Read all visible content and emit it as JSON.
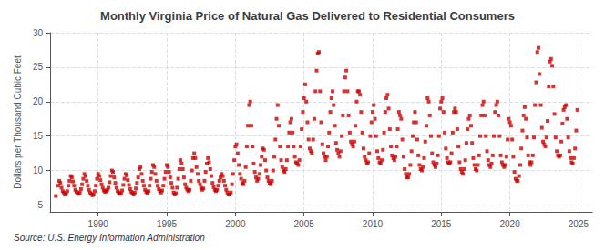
{
  "chart_data": {
    "type": "scatter",
    "title": "Monthly Virginia Price of Natural Gas Delivered to Residential Consumers",
    "ylabel": "Dollars per Thousand Cubic Feet",
    "annotations": [
      "Source: U.S. Energy Information Administration"
    ],
    "color": "#cc0000",
    "marker": "square",
    "grid": true,
    "xlim": [
      1986.5,
      2026.0
    ],
    "ylim": [
      4,
      30
    ],
    "xticks": [
      1990,
      1995,
      2000,
      2005,
      2010,
      2015,
      2020,
      2025
    ],
    "yticks": [
      5,
      10,
      15,
      20,
      25,
      30
    ],
    "x": [
      1986.917,
      1987.083,
      1987.167,
      1987.25,
      1987.333,
      1987.417,
      1987.5,
      1987.583,
      1987.667,
      1987.75,
      1987.833,
      1987.917,
      1988.0,
      1988.083,
      1988.167,
      1988.25,
      1988.333,
      1988.417,
      1988.5,
      1988.583,
      1988.667,
      1988.75,
      1988.833,
      1988.917,
      1989.0,
      1989.083,
      1989.167,
      1989.25,
      1989.333,
      1989.417,
      1989.5,
      1989.583,
      1989.667,
      1989.75,
      1989.833,
      1989.917,
      1990.0,
      1990.083,
      1990.167,
      1990.25,
      1990.333,
      1990.417,
      1990.5,
      1990.583,
      1990.667,
      1990.75,
      1990.833,
      1990.917,
      1991.0,
      1991.083,
      1991.167,
      1991.25,
      1991.333,
      1991.417,
      1991.5,
      1991.583,
      1991.667,
      1991.75,
      1991.833,
      1991.917,
      1992.0,
      1992.083,
      1992.167,
      1992.25,
      1992.333,
      1992.417,
      1992.5,
      1992.583,
      1992.667,
      1992.75,
      1992.833,
      1992.917,
      1993.0,
      1993.083,
      1993.167,
      1993.25,
      1993.333,
      1993.417,
      1993.5,
      1993.583,
      1993.667,
      1993.75,
      1993.833,
      1993.917,
      1994.0,
      1994.083,
      1994.167,
      1994.25,
      1994.333,
      1994.417,
      1994.5,
      1994.583,
      1994.667,
      1994.75,
      1994.833,
      1994.917,
      1995.0,
      1995.083,
      1995.167,
      1995.25,
      1995.333,
      1995.417,
      1995.5,
      1995.583,
      1995.667,
      1995.75,
      1995.833,
      1995.917,
      1996.0,
      1996.083,
      1996.167,
      1996.25,
      1996.333,
      1996.417,
      1996.5,
      1996.583,
      1996.667,
      1996.75,
      1996.833,
      1996.917,
      1997.0,
      1997.083,
      1997.167,
      1997.25,
      1997.333,
      1997.417,
      1997.5,
      1997.583,
      1997.667,
      1997.75,
      1997.833,
      1997.917,
      1998.0,
      1998.083,
      1998.167,
      1998.25,
      1998.333,
      1998.417,
      1998.5,
      1998.583,
      1998.667,
      1998.75,
      1998.833,
      1998.917,
      1999.0,
      1999.083,
      1999.167,
      1999.25,
      1999.333,
      1999.417,
      1999.5,
      1999.583,
      1999.667,
      1999.75,
      1999.833,
      1999.917,
      2000.0,
      2000.083,
      2000.167,
      2000.25,
      2000.333,
      2000.417,
      2000.5,
      2000.583,
      2000.667,
      2000.75,
      2000.833,
      2000.917,
      2001.0,
      2001.083,
      2001.167,
      2001.25,
      2001.333,
      2001.417,
      2001.5,
      2001.583,
      2001.667,
      2001.75,
      2001.833,
      2001.917,
      2002.0,
      2002.083,
      2002.167,
      2002.25,
      2002.333,
      2002.417,
      2002.5,
      2002.583,
      2002.667,
      2002.75,
      2002.833,
      2002.917,
      2003.0,
      2003.083,
      2003.167,
      2003.25,
      2003.333,
      2003.417,
      2003.5,
      2003.583,
      2003.667,
      2003.75,
      2003.833,
      2003.917,
      2004.0,
      2004.083,
      2004.167,
      2004.25,
      2004.333,
      2004.417,
      2004.5,
      2004.583,
      2004.667,
      2004.75,
      2004.833,
      2004.917,
      2005.0,
      2005.083,
      2005.167,
      2005.25,
      2005.333,
      2005.417,
      2005.5,
      2005.583,
      2005.667,
      2005.75,
      2005.833,
      2005.917,
      2006.0,
      2006.083,
      2006.167,
      2006.25,
      2006.333,
      2006.417,
      2006.5,
      2006.583,
      2006.667,
      2006.75,
      2006.833,
      2006.917,
      2007.0,
      2007.083,
      2007.167,
      2007.25,
      2007.333,
      2007.417,
      2007.5,
      2007.583,
      2007.667,
      2007.75,
      2007.833,
      2007.917,
      2008.0,
      2008.083,
      2008.167,
      2008.25,
      2008.333,
      2008.417,
      2008.5,
      2008.583,
      2008.667,
      2008.75,
      2008.833,
      2008.917,
      2009.0,
      2009.083,
      2009.167,
      2009.25,
      2009.333,
      2009.417,
      2009.5,
      2009.583,
      2009.667,
      2009.75,
      2009.833,
      2009.917,
      2010.0,
      2010.083,
      2010.167,
      2010.25,
      2010.333,
      2010.417,
      2010.5,
      2010.583,
      2010.667,
      2010.75,
      2010.833,
      2010.917,
      2011.0,
      2011.083,
      2011.167,
      2011.25,
      2011.333,
      2011.417,
      2011.5,
      2011.583,
      2011.667,
      2011.75,
      2011.833,
      2011.917,
      2012.0,
      2012.083,
      2012.167,
      2012.25,
      2012.333,
      2012.417,
      2012.5,
      2012.583,
      2012.667,
      2012.75,
      2012.833,
      2012.917,
      2013.0,
      2013.083,
      2013.167,
      2013.25,
      2013.333,
      2013.417,
      2013.5,
      2013.583,
      2013.667,
      2013.75,
      2013.833,
      2013.917,
      2014.0,
      2014.083,
      2014.167,
      2014.25,
      2014.333,
      2014.417,
      2014.5,
      2014.583,
      2014.667,
      2014.75,
      2014.833,
      2014.917,
      2015.0,
      2015.083,
      2015.167,
      2015.25,
      2015.333,
      2015.417,
      2015.5,
      2015.583,
      2015.667,
      2015.75,
      2015.833,
      2015.917,
      2016.0,
      2016.083,
      2016.167,
      2016.25,
      2016.333,
      2016.417,
      2016.5,
      2016.583,
      2016.667,
      2016.75,
      2016.833,
      2016.917,
      2017.0,
      2017.083,
      2017.167,
      2017.25,
      2017.333,
      2017.417,
      2017.5,
      2017.583,
      2017.667,
      2017.75,
      2017.833,
      2017.917,
      2018.0,
      2018.083,
      2018.167,
      2018.25,
      2018.333,
      2018.417,
      2018.5,
      2018.583,
      2018.667,
      2018.75,
      2018.833,
      2018.917,
      2019.0,
      2019.083,
      2019.167,
      2019.25,
      2019.333,
      2019.417,
      2019.5,
      2019.583,
      2019.667,
      2019.75,
      2019.833,
      2019.917,
      2020.0,
      2020.083,
      2020.167,
      2020.25,
      2020.333,
      2020.417,
      2020.5,
      2020.583,
      2020.667,
      2020.75,
      2020.833,
      2020.917,
      2021.0,
      2021.083,
      2021.167,
      2021.25,
      2021.333,
      2021.417,
      2021.5,
      2021.583,
      2021.667,
      2021.75,
      2021.833,
      2021.917,
      2022.0,
      2022.083,
      2022.167,
      2022.25,
      2022.333,
      2022.417,
      2022.5,
      2022.583,
      2022.667,
      2022.75,
      2022.833,
      2022.917,
      2023.0,
      2023.083,
      2023.167,
      2023.25,
      2023.333,
      2023.417,
      2023.5,
      2023.583,
      2023.667,
      2023.75,
      2023.833,
      2023.917,
      2024.0,
      2024.083,
      2024.167,
      2024.25,
      2024.333,
      2024.417,
      2024.5,
      2024.583,
      2024.667,
      2024.75,
      2024.833,
      2024.917
    ],
    "values": [
      6.3,
      7.8,
      8.5,
      8.2,
      7.5,
      7.0,
      6.8,
      6.5,
      6.6,
      7.0,
      7.8,
      8.5,
      9.2,
      9.0,
      8.4,
      7.8,
      7.2,
      6.9,
      6.7,
      6.6,
      6.8,
      7.3,
      8.0,
      8.8,
      9.5,
      9.2,
      8.5,
      7.8,
      7.2,
      6.8,
      6.6,
      6.4,
      6.5,
      7.0,
      7.8,
      8.8,
      9.5,
      9.2,
      8.6,
      8.0,
      7.5,
      7.1,
      6.9,
      7.0,
      7.2,
      7.5,
      8.3,
      9.2,
      10.0,
      9.8,
      9.0,
      8.2,
      7.5,
      7.0,
      6.8,
      6.6,
      6.7,
      7.1,
      7.9,
      8.8,
      9.5,
      9.3,
      8.6,
      7.9,
      7.3,
      6.9,
      6.7,
      6.5,
      6.8,
      7.4,
      8.2,
      9.0,
      10.2,
      10.5,
      9.5,
      8.5,
      7.8,
      7.2,
      6.9,
      6.7,
      7.0,
      7.8,
      8.8,
      9.8,
      10.8,
      10.5,
      9.5,
      8.5,
      7.8,
      7.3,
      7.0,
      6.8,
      7.1,
      7.8,
      8.8,
      9.8,
      10.8,
      10.5,
      9.8,
      9.0,
      8.2,
      7.5,
      6.8,
      6.5,
      6.7,
      7.5,
      8.8,
      10.2,
      11.5,
      11.0,
      10.2,
      9.0,
      8.0,
      7.5,
      7.2,
      7.0,
      7.2,
      8.5,
      10.0,
      11.8,
      12.5,
      11.8,
      10.5,
      9.5,
      8.5,
      8.0,
      7.5,
      7.2,
      7.4,
      8.5,
      9.8,
      11.0,
      11.8,
      11.2,
      10.2,
      9.2,
      8.2,
      7.6,
      7.2,
      7.0,
      7.2,
      7.8,
      8.5,
      9.0,
      9.5,
      9.2,
      8.5,
      7.8,
      7.2,
      6.8,
      6.5,
      6.5,
      6.8,
      8.0,
      9.5,
      11.5,
      13.5,
      13.8,
      12.5,
      10.8,
      9.5,
      8.8,
      8.2,
      8.0,
      8.5,
      10.5,
      13.5,
      16.5,
      19.5,
      20.0,
      16.5,
      13.5,
      11.0,
      9.8,
      9.0,
      8.5,
      8.8,
      9.5,
      10.8,
      12.0,
      13.2,
      13.0,
      11.5,
      10.0,
      9.0,
      8.5,
      8.2,
      8.0,
      8.5,
      10.0,
      12.0,
      14.5,
      17.5,
      19.5,
      16.5,
      13.5,
      11.5,
      10.5,
      10.0,
      9.8,
      10.2,
      11.5,
      13.5,
      15.5,
      17.0,
      17.5,
      15.5,
      13.5,
      12.0,
      11.2,
      11.0,
      10.8,
      11.5,
      13.5,
      16.0,
      18.5,
      20.5,
      22.5,
      20.0,
      17.0,
      14.5,
      13.2,
      12.8,
      12.5,
      14.5,
      17.5,
      21.5,
      24.5,
      27.0,
      27.2,
      21.5,
      17.0,
      13.8,
      12.5,
      12.0,
      11.5,
      12.0,
      13.5,
      15.5,
      18.5,
      20.5,
      21.5,
      19.5,
      16.5,
      14.0,
      13.0,
      12.5,
      12.0,
      12.8,
      15.0,
      18.0,
      21.5,
      23.5,
      24.5,
      21.5,
      18.0,
      15.5,
      14.2,
      13.8,
      13.5,
      14.2,
      16.5,
      20.0,
      21.5,
      21.5,
      21.0,
      18.5,
      15.5,
      13.2,
      12.0,
      11.5,
      11.0,
      11.2,
      12.5,
      15.0,
      17.0,
      18.5,
      19.5,
      17.5,
      15.0,
      12.8,
      11.8,
      11.2,
      11.0,
      11.5,
      13.0,
      15.5,
      18.5,
      20.5,
      21.0,
      19.0,
      16.0,
      13.5,
      12.2,
      11.8,
      11.5,
      12.0,
      13.5,
      16.0,
      18.5,
      18.0,
      17.5,
      14.5,
      12.0,
      10.2,
      9.5,
      9.0,
      9.0,
      9.5,
      10.8,
      12.8,
      15.0,
      17.0,
      18.5,
      17.0,
      14.5,
      12.2,
      10.8,
      10.2,
      10.0,
      10.5,
      11.8,
      14.2,
      16.5,
      20.5,
      20.0,
      18.0,
      15.0,
      12.5,
      11.2,
      10.8,
      10.5,
      11.0,
      12.2,
      15.0,
      19.0,
      20.0,
      20.5,
      18.5,
      15.5,
      13.2,
      11.8,
      11.2,
      11.0,
      11.2,
      12.5,
      15.5,
      18.5,
      19.0,
      18.5,
      16.0,
      13.5,
      11.2,
      10.2,
      9.8,
      9.5,
      10.2,
      11.5,
      14.0,
      16.0,
      17.5,
      18.0,
      16.5,
      14.0,
      11.8,
      10.8,
      10.2,
      10.0,
      10.8,
      12.2,
      15.0,
      18.0,
      19.5,
      20.0,
      18.0,
      15.0,
      12.8,
      11.5,
      10.8,
      10.5,
      11.0,
      12.2,
      15.0,
      18.5,
      19.5,
      20.0,
      18.0,
      15.0,
      12.2,
      11.2,
      10.8,
      10.5,
      10.8,
      12.0,
      14.5,
      17.5,
      17.0,
      16.5,
      14.5,
      12.0,
      9.8,
      8.8,
      8.5,
      8.5,
      9.2,
      10.8,
      13.2,
      15.8,
      18.0,
      19.2,
      17.5,
      14.8,
      12.2,
      11.2,
      10.8,
      11.2,
      12.2,
      14.8,
      19.5,
      22.8,
      27.2,
      27.8,
      24.0,
      19.5,
      16.2,
      14.2,
      13.8,
      13.5,
      14.8,
      17.2,
      22.2,
      25.8,
      26.2,
      25.2,
      22.2,
      18.2,
      14.8,
      12.8,
      12.2,
      12.0,
      12.2,
      14.2,
      16.8,
      18.8,
      19.2,
      19.5,
      17.5,
      14.8,
      12.8,
      11.8,
      11.2,
      11.0,
      11.8,
      13.2,
      15.8,
      18.8
    ]
  }
}
